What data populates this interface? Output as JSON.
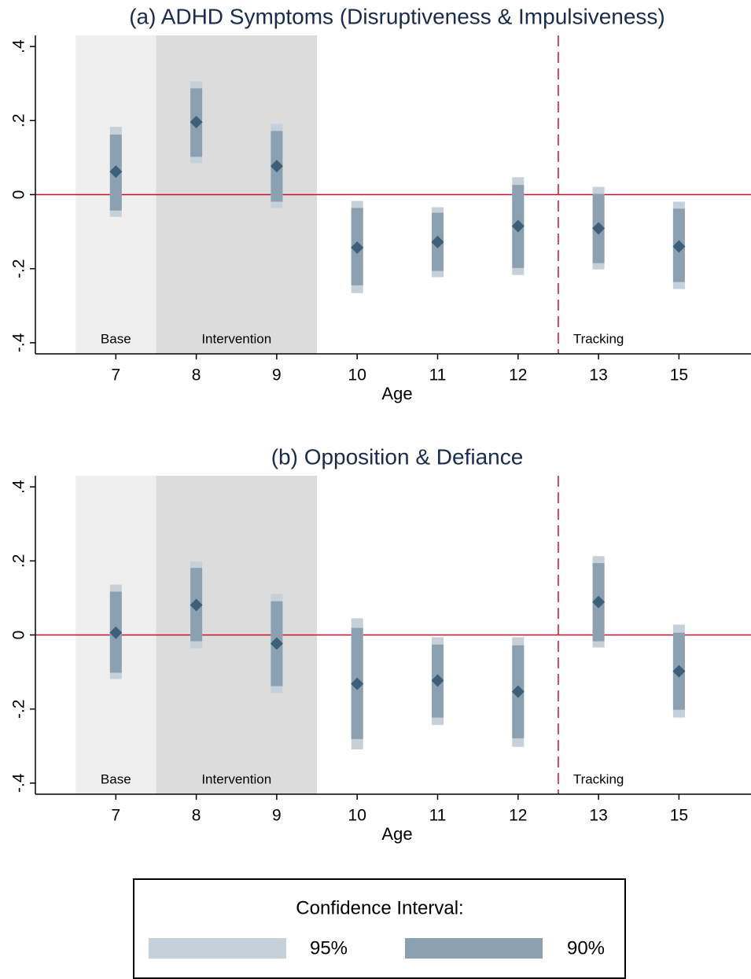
{
  "chart_data": [
    {
      "type": "range-dot",
      "title": "(a) ADHD Symptoms (Disruptiveness & Impulsiveness)",
      "x_label": "Age",
      "categories": [
        "7",
        "8",
        "9",
        "10",
        "11",
        "12",
        "13",
        "15"
      ],
      "values": [
        0.062,
        0.196,
        0.077,
        -0.143,
        -0.128,
        -0.085,
        -0.091,
        -0.14
      ],
      "ci90_low": [
        -0.043,
        0.102,
        -0.019,
        -0.245,
        -0.206,
        -0.198,
        -0.185,
        -0.236
      ],
      "ci90_high": [
        0.162,
        0.287,
        0.172,
        -0.036,
        -0.049,
        0.026,
        0.002,
        -0.038
      ],
      "ci95_low": [
        -0.06,
        0.085,
        -0.036,
        -0.266,
        -0.223,
        -0.217,
        -0.202,
        -0.255
      ],
      "ci95_high": [
        0.183,
        0.306,
        0.191,
        -0.017,
        -0.034,
        0.047,
        0.021,
        -0.019
      ],
      "marker_color": "#3d5f7a",
      "ylim": [
        -0.43,
        0.43
      ],
      "yticks": [
        {
          "value": -0.4,
          "label": "-.4"
        },
        {
          "value": -0.2,
          "label": "-.2"
        },
        0,
        {
          "value": 0.2,
          "label": ".2"
        },
        {
          "value": 0.4,
          "label": ".4"
        }
      ],
      "hline": 0,
      "hline_color": "#c8102e",
      "annotations": [
        "Base",
        "Intervention",
        "Tracking"
      ]
    },
    {
      "type": "range-dot",
      "title": "(b) Opposition & Defiance",
      "x_label": "Age",
      "categories": [
        "7",
        "8",
        "9",
        "10",
        "11",
        "12",
        "13",
        "15"
      ],
      "values": [
        0.006,
        0.081,
        -0.023,
        -0.132,
        -0.123,
        -0.153,
        0.089,
        -0.098
      ],
      "ci90_low": [
        -0.102,
        -0.017,
        -0.138,
        -0.281,
        -0.223,
        -0.279,
        -0.017,
        -0.202
      ],
      "ci90_high": [
        0.117,
        0.181,
        0.091,
        0.019,
        -0.026,
        -0.028,
        0.194,
        0.006
      ],
      "ci95_low": [
        -0.119,
        -0.036,
        -0.157,
        -0.309,
        -0.243,
        -0.302,
        -0.034,
        -0.223
      ],
      "ci95_high": [
        0.136,
        0.198,
        0.111,
        0.045,
        -0.006,
        -0.006,
        0.213,
        0.028
      ],
      "marker_color": "#3d5f7a",
      "ylim": [
        -0.43,
        0.43
      ],
      "yticks": [
        {
          "value": -0.4,
          "label": "-.4"
        },
        {
          "value": -0.2,
          "label": "-.2"
        },
        0,
        {
          "value": 0.2,
          "label": ".2"
        },
        {
          "value": 0.4,
          "label": ".4"
        }
      ],
      "hline": 0,
      "hline_color": "#c8102e",
      "annotations": [
        "Base",
        "Intervention",
        "Tracking"
      ]
    }
  ],
  "legend": {
    "title": "Confidence Interval:",
    "items": [
      {
        "name": "95%",
        "color": "#c5d0d8"
      },
      {
        "name": "90%",
        "color": "#8ba1b1"
      }
    ]
  }
}
